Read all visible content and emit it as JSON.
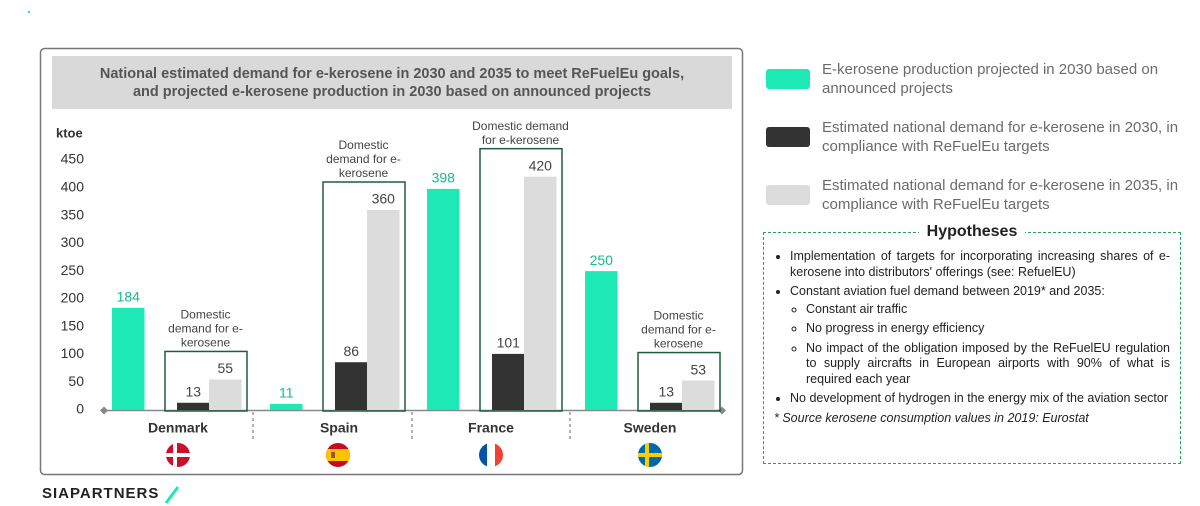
{
  "chart_data": {
    "type": "bar",
    "title_lines": [
      "National estimated demand for e-kerosene in 2030 and 2035 to meet ReFuelEu goals,",
      "and projected e-kerosene production in 2030 based on announced projects"
    ],
    "y_label": "ktoe",
    "categories": [
      "Denmark",
      "Spain",
      "France",
      "Sweden"
    ],
    "series": [
      {
        "name": "E-kerosene production projected in 2030 based on announced projects",
        "color": "#1de9b6",
        "label_color": "#17b98f",
        "values": [
          184,
          11,
          398,
          250
        ]
      },
      {
        "name": "Estimated national demand for e-kerosene in 2030, in compliance with ReFuelEu targets",
        "color": "#333333",
        "label_color": "#444444",
        "values": [
          13,
          86,
          101,
          13
        ]
      },
      {
        "name": "Estimated national demand for e-kerosene in 2035, in compliance with ReFuelEu targets",
        "color": "#dcdcdc",
        "label_color": "#444444",
        "values": [
          55,
          360,
          420,
          53
        ]
      }
    ],
    "annotations": [
      [
        "Domestic",
        "demand for e-",
        "kerosene"
      ],
      [
        "Domestic",
        "demand for e-",
        "kerosene"
      ],
      [
        "Domestic demand",
        "for e-kerosene"
      ],
      [
        "Domestic",
        "demand for e-",
        "kerosene"
      ]
    ],
    "ylim": [
      0,
      450
    ],
    "yticks": [
      0,
      50,
      100,
      150,
      200,
      250,
      300,
      350,
      400,
      450
    ]
  },
  "hypotheses": {
    "title": "Hypotheses",
    "items": [
      {
        "text": "Implementation of targets for incorporating increasing shares of e-kerosene into distributors' offerings (see: RefuelEU)",
        "sub": []
      },
      {
        "text": "Constant aviation fuel demand between 2019* and 2035:",
        "sub": [
          "Constant air traffic",
          "No progress in energy efficiency",
          "No impact of the obligation imposed by the ReFuelEU regulation to supply aircrafts in European airports with 90% of what is required each year"
        ]
      },
      {
        "text": "No development of hydrogen in the energy mix of the aviation sector",
        "sub": []
      }
    ],
    "note": "* Source kerosene consumption values in 2019: Eurostat"
  },
  "logo": "SIAPARTNERS"
}
